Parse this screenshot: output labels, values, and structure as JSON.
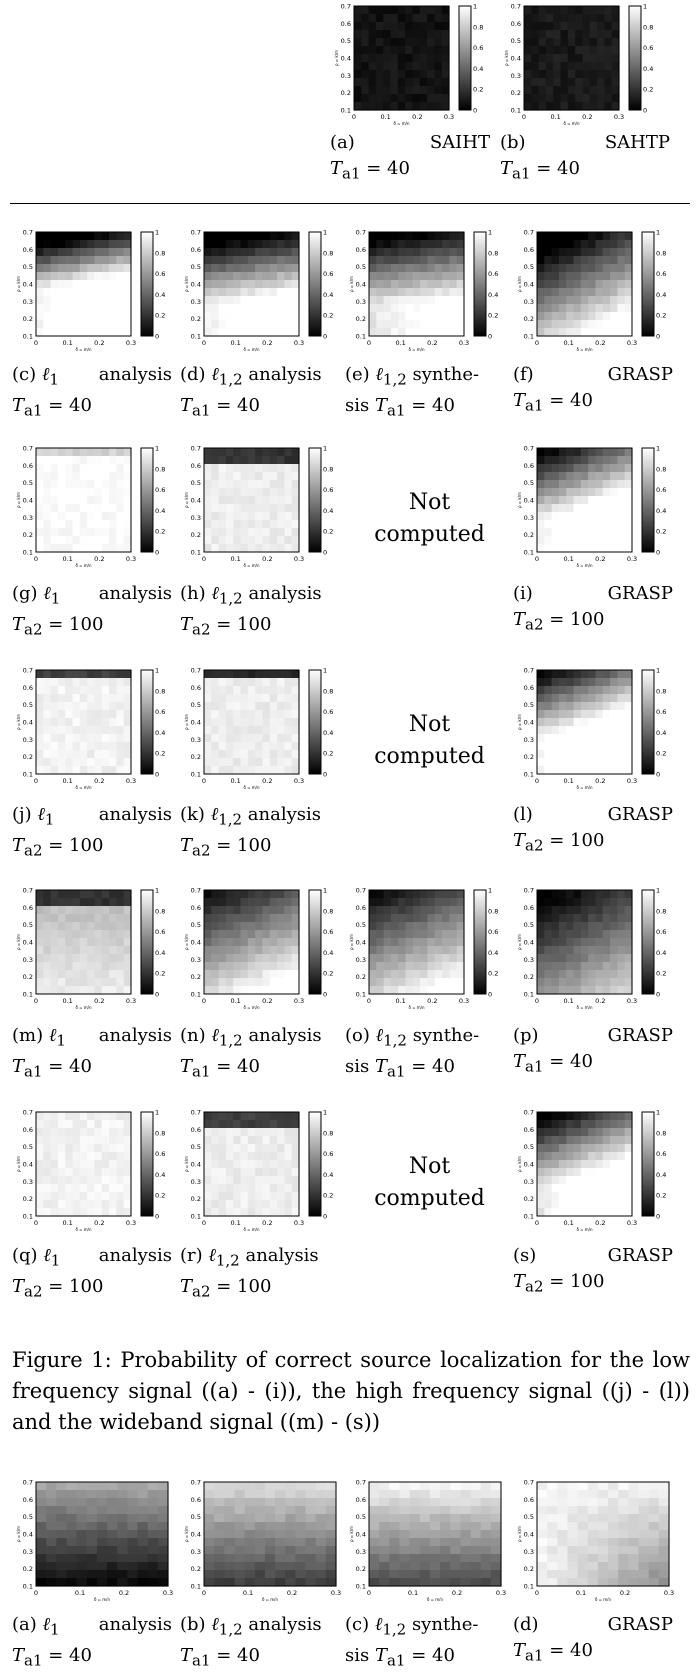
{
  "colorbar_ticks": [
    "0",
    "0.2",
    "0.4",
    "0.6",
    "0.8",
    "1"
  ],
  "y_ticks": [
    "0.1",
    "0.2",
    "0.3",
    "0.4",
    "0.5",
    "0.6",
    "0.7"
  ],
  "x_ticks": [
    "0",
    "0.1",
    "0.2",
    "0.3"
  ],
  "y_axis_label": "ρ = k/m",
  "x_axis_label": "δ = m/n",
  "not_computed": "Not computed",
  "figure_caption": "Figure 1: Probability of correct source localization for the low frequency signal ((a) - (i)), the high frequency signal ((j) - (l)) and the wideband signal ((m) - (s))",
  "panels": [
    {
      "id": "a",
      "label": "(a)",
      "method": "SAIHT",
      "param": "Ta1 = 40"
    },
    {
      "id": "b",
      "label": "(b)",
      "method": "SAHTP",
      "param": "Ta1 = 40"
    },
    {
      "id": "c",
      "label": "(c)",
      "method": "ℓ1 analysis",
      "param": "Ta1 = 40"
    },
    {
      "id": "d",
      "label": "(d)",
      "method": "ℓ1,2 analysis",
      "param": "Ta1 = 40"
    },
    {
      "id": "e",
      "label": "(e)",
      "method": "ℓ1,2 synthesis",
      "param": "Ta1 = 40"
    },
    {
      "id": "f",
      "label": "(f)",
      "method": "GRASP",
      "param": "Ta1 = 40"
    },
    {
      "id": "g",
      "label": "(g)",
      "method": "ℓ1 analysis",
      "param": "Ta2 = 100"
    },
    {
      "id": "h",
      "label": "(h)",
      "method": "ℓ1,2 analysis",
      "param": "Ta2 = 100"
    },
    {
      "id": "i",
      "label": "(i)",
      "method": "GRASP",
      "param": "Ta2 = 100"
    },
    {
      "id": "j",
      "label": "(j)",
      "method": "ℓ1 analysis",
      "param": "Ta2 = 100"
    },
    {
      "id": "k",
      "label": "(k)",
      "method": "ℓ1,2 analysis",
      "param": "Ta2 = 100"
    },
    {
      "id": "l",
      "label": "(l)",
      "method": "GRASP",
      "param": "Ta2 = 100"
    },
    {
      "id": "m",
      "label": "(m)",
      "method": "ℓ1 analysis",
      "param": "Ta1 = 40"
    },
    {
      "id": "n",
      "label": "(n)",
      "method": "ℓ1,2 analysis",
      "param": "Ta1 = 40"
    },
    {
      "id": "o",
      "label": "(o)",
      "method": "ℓ1,2 synthesis",
      "param": "Ta1 = 40"
    },
    {
      "id": "p",
      "label": "(p)",
      "method": "GRASP",
      "param": "Ta1 = 40"
    },
    {
      "id": "q",
      "label": "(q)",
      "method": "ℓ1 analysis",
      "param": "Ta2 = 100"
    },
    {
      "id": "r",
      "label": "(r)",
      "method": "ℓ1,2 analysis",
      "param": "Ta2 = 100"
    },
    {
      "id": "s",
      "label": "(s)",
      "method": "GRASP",
      "param": "Ta2 = 100"
    },
    {
      "id": "a2",
      "label": "(a)",
      "method": "ℓ1 analysis",
      "param": "Ta1 = 40"
    },
    {
      "id": "b2",
      "label": "(b)",
      "method": "ℓ1,2 analysis",
      "param": "Ta1 = 40"
    },
    {
      "id": "c2",
      "label": "(c)",
      "method": "ℓ1,2 synthesis",
      "param": "Ta1 = 40"
    },
    {
      "id": "d2",
      "label": "(d)",
      "method": "GRASP",
      "param": "Ta1 = 40"
    }
  ]
}
